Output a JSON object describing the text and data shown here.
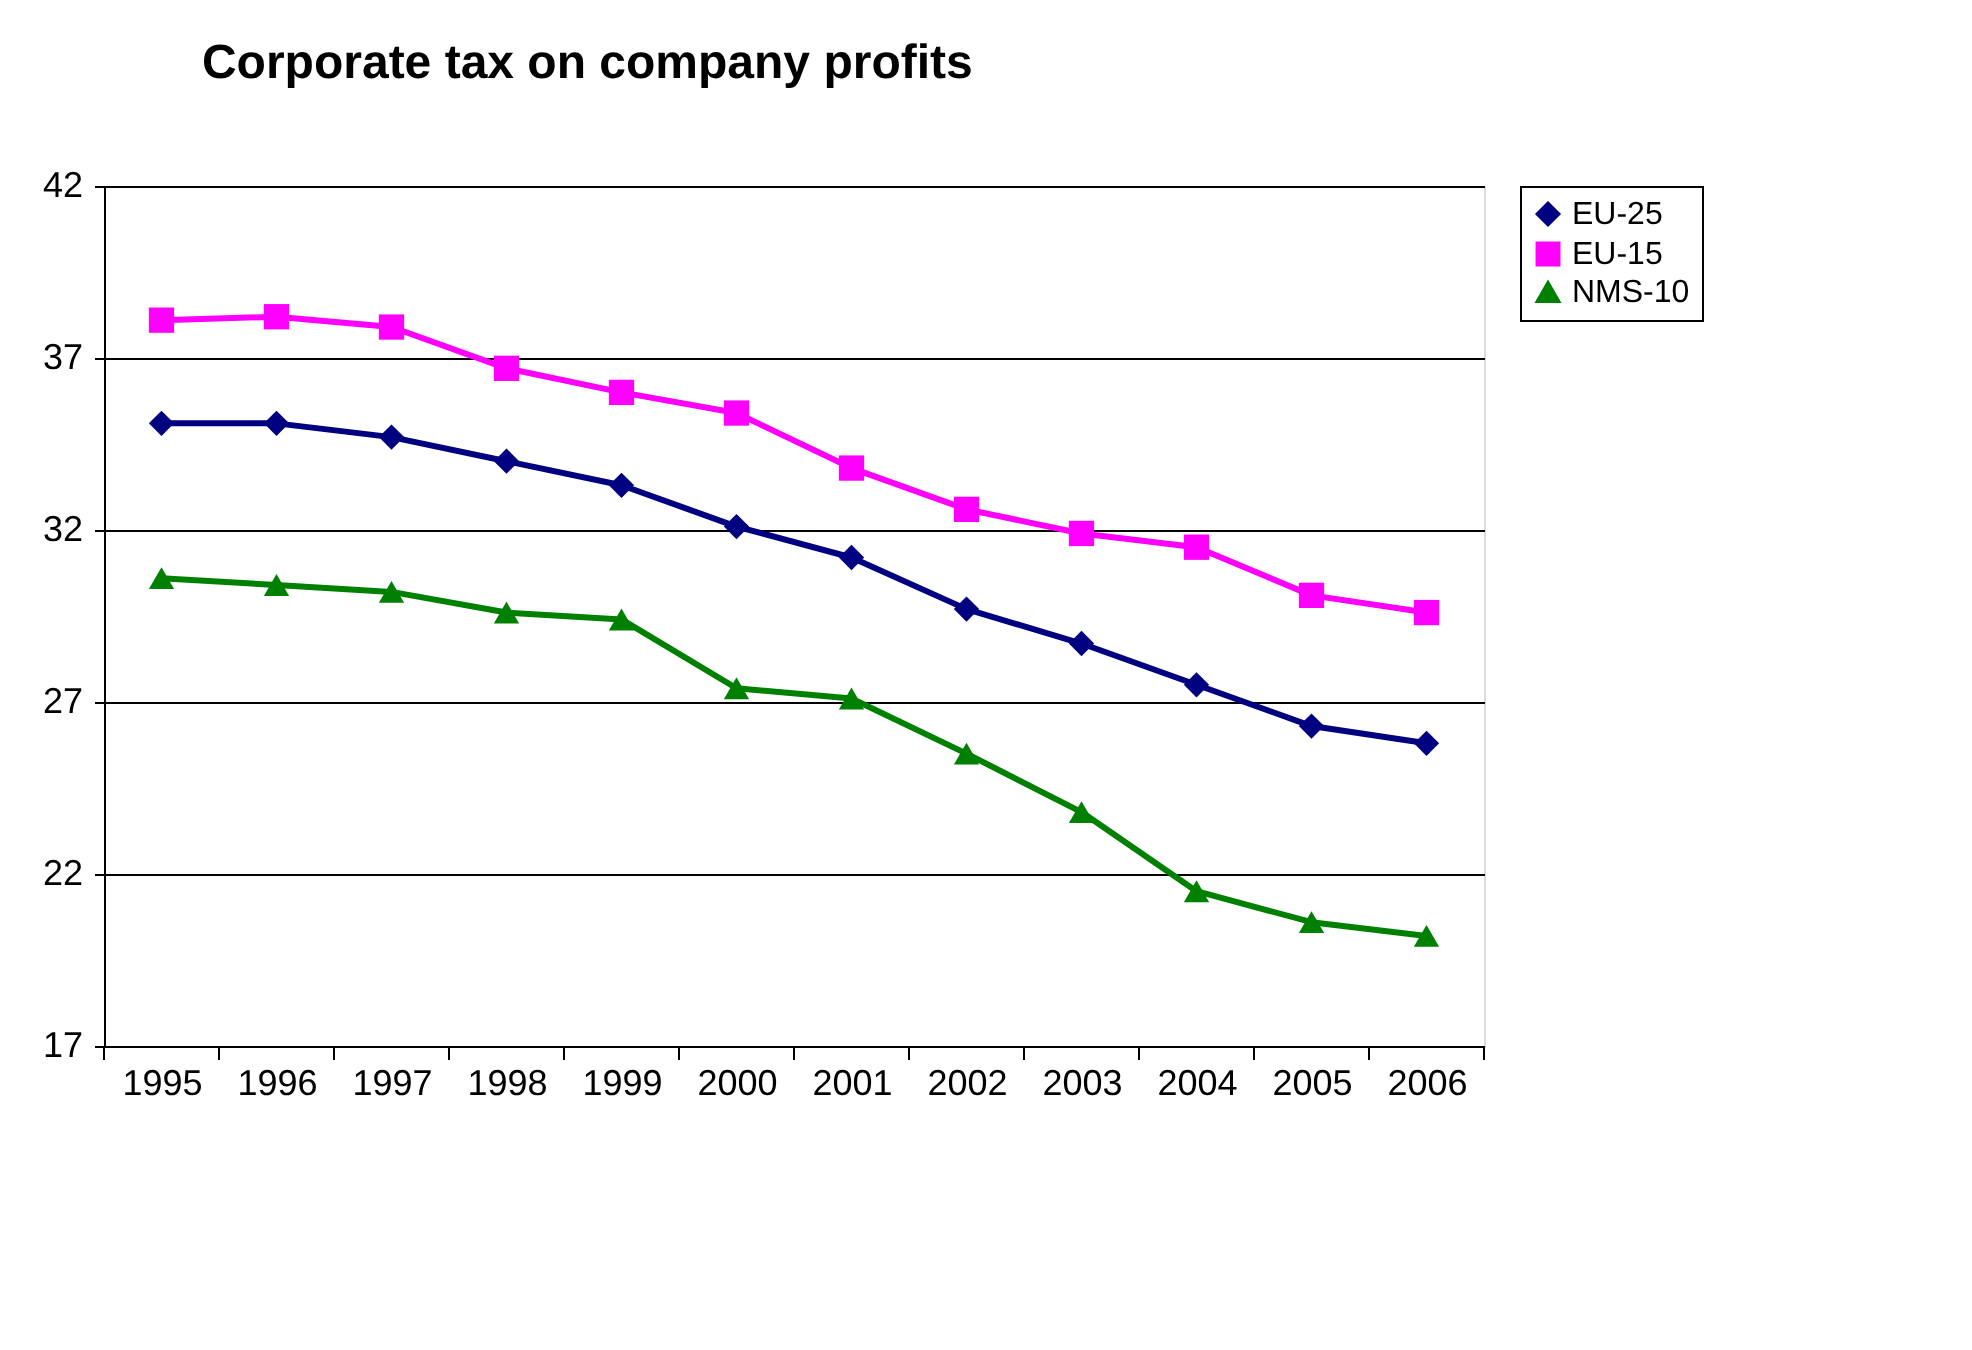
{
  "chart_data": {
    "type": "line",
    "title": "Corporate tax on company profits",
    "categories": [
      "1995",
      "1996",
      "1997",
      "1998",
      "1999",
      "2000",
      "2001",
      "2002",
      "2003",
      "2004",
      "2005",
      "2006"
    ],
    "series": [
      {
        "name": "EU-25",
        "color": "#000080",
        "marker": "diamond",
        "values": [
          35.1,
          35.1,
          34.7,
          34.0,
          33.3,
          32.1,
          31.2,
          29.7,
          28.7,
          27.5,
          26.3,
          25.8
        ]
      },
      {
        "name": "EU-15",
        "color": "#ff00ff",
        "marker": "square",
        "values": [
          38.1,
          38.2,
          37.9,
          36.7,
          36.0,
          35.4,
          33.8,
          32.6,
          31.9,
          31.5,
          30.1,
          29.6
        ]
      },
      {
        "name": "NMS-10",
        "color": "#008000",
        "marker": "triangle",
        "values": [
          30.6,
          30.4,
          30.2,
          29.6,
          29.4,
          27.4,
          27.1,
          25.5,
          23.8,
          21.5,
          20.6,
          20.2
        ]
      }
    ],
    "ylim": [
      17,
      42
    ],
    "yticks": [
      17,
      22,
      27,
      32,
      37,
      42
    ],
    "grid": "y",
    "legend": "right"
  }
}
